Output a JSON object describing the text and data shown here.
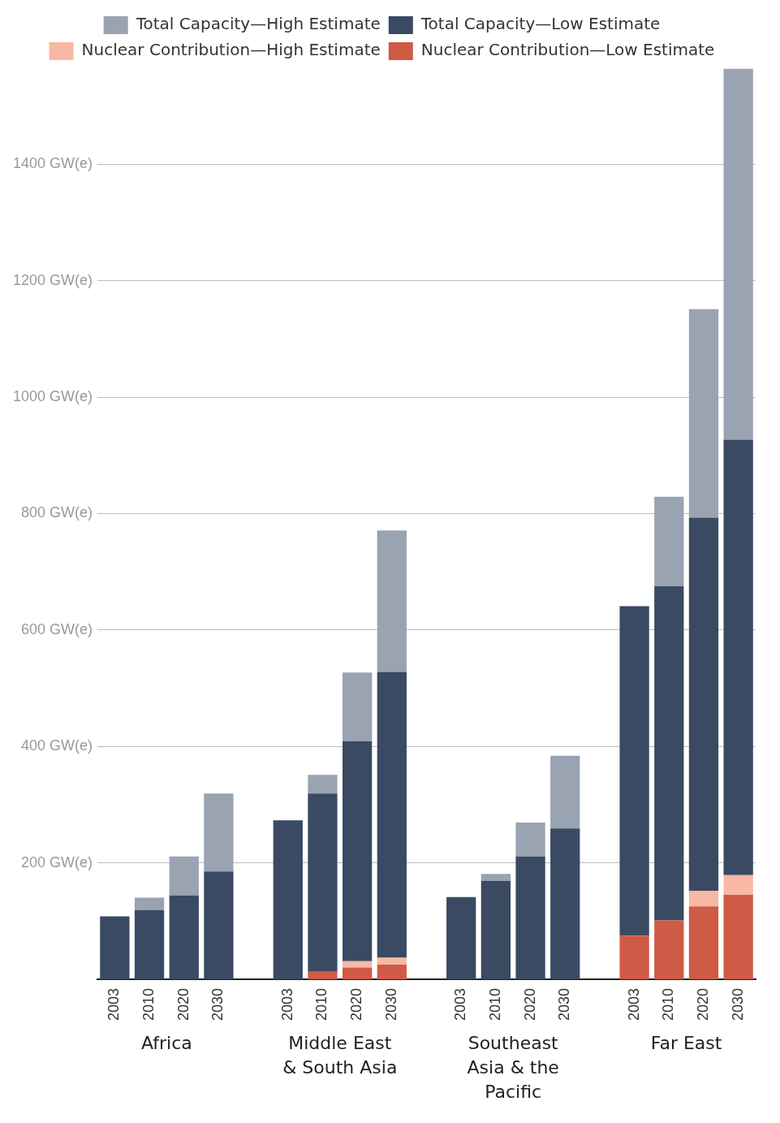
{
  "chart_data": {
    "type": "bar",
    "stacked": true,
    "categories": [
      "2003",
      "2010",
      "2020",
      "2030",
      null,
      "2003",
      "2010",
      "2020",
      "2030",
      null,
      "2003",
      "2010",
      "2020",
      "2030",
      null,
      "2003",
      "2010",
      "2020",
      "2030"
    ],
    "series": [
      {
        "name": "Nuclear Contribution—Low Estimate",
        "color": "#cf5a45",
        "values": [
          null,
          null,
          null,
          null,
          null,
          null,
          13,
          20,
          25,
          null,
          null,
          null,
          null,
          null,
          null,
          75,
          101,
          125,
          145
        ]
      },
      {
        "name": "Nuclear Contribution—High Estimate",
        "color": "#f7b9a3",
        "values": [
          null,
          null,
          null,
          null,
          null,
          null,
          null,
          11,
          12,
          null,
          null,
          null,
          null,
          null,
          null,
          null,
          null,
          27,
          34
        ]
      },
      {
        "name": "Total Capacity—Low Estimate",
        "color": "#3a4a63",
        "values": [
          108,
          119,
          144,
          185,
          null,
          273,
          306,
          378,
          491,
          null,
          141,
          169,
          211,
          259,
          null,
          566,
          574,
          641,
          748
        ]
      },
      {
        "name": "Total Capacity—High Estimate",
        "color": "#9aa3b2",
        "values": [
          null,
          21,
          67,
          134,
          null,
          null,
          32,
          118,
          243,
          null,
          null,
          12,
          58,
          125,
          null,
          null,
          154,
          358,
          637
        ]
      }
    ],
    "ylim": [
      0,
      1565
    ],
    "yticks": [
      {
        "value": 200,
        "label": "200 GW(e)"
      },
      {
        "value": 400,
        "label": "400 GW(e)"
      },
      {
        "value": 600,
        "label": "600 GW(e)"
      },
      {
        "value": 800,
        "label": "800 GW(e)"
      },
      {
        "value": 1000,
        "label": "1000 GW(e)"
      },
      {
        "value": 1200,
        "label": "1200 GW(e)"
      },
      {
        "value": 1400,
        "label": "1400 GW(e)"
      }
    ],
    "grid": "y",
    "legend": "top",
    "annotations": [
      "Africa",
      "Middle East & South Asia",
      "Southeast Asia & the Pacific",
      "Far East"
    ]
  }
}
